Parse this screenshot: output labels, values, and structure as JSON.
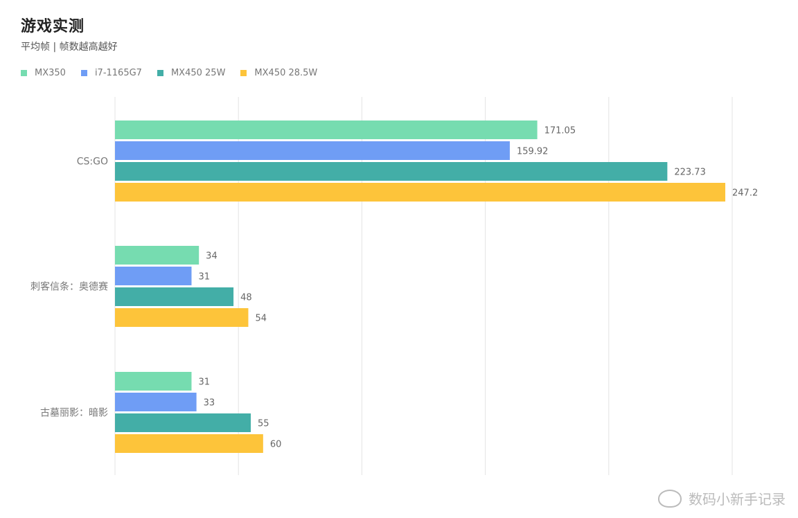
{
  "chart_data": {
    "type": "bar",
    "orientation": "horizontal",
    "title": "游戏实测",
    "subtitle": "平均帧 | 帧数越高越好",
    "categories": [
      "CS:GO",
      "刺客信条：奥德赛",
      "古墓丽影：暗影"
    ],
    "series": [
      {
        "name": "MX350",
        "color": "#76DCB0",
        "values": [
          171.05,
          34,
          31
        ]
      },
      {
        "name": "i7-1165G7",
        "color": "#6F9DF5",
        "values": [
          159.92,
          31,
          33
        ]
      },
      {
        "name": "MX450 25W",
        "color": "#43AEA7",
        "values": [
          223.73,
          48,
          55
        ]
      },
      {
        "name": "MX450 28.5W",
        "color": "#FDC43A",
        "values": [
          247.2,
          54,
          60
        ]
      }
    ],
    "xlim": [
      0,
      250
    ],
    "grid": true,
    "legend": "top-left"
  },
  "watermark": {
    "text": "数码小新手记录"
  }
}
